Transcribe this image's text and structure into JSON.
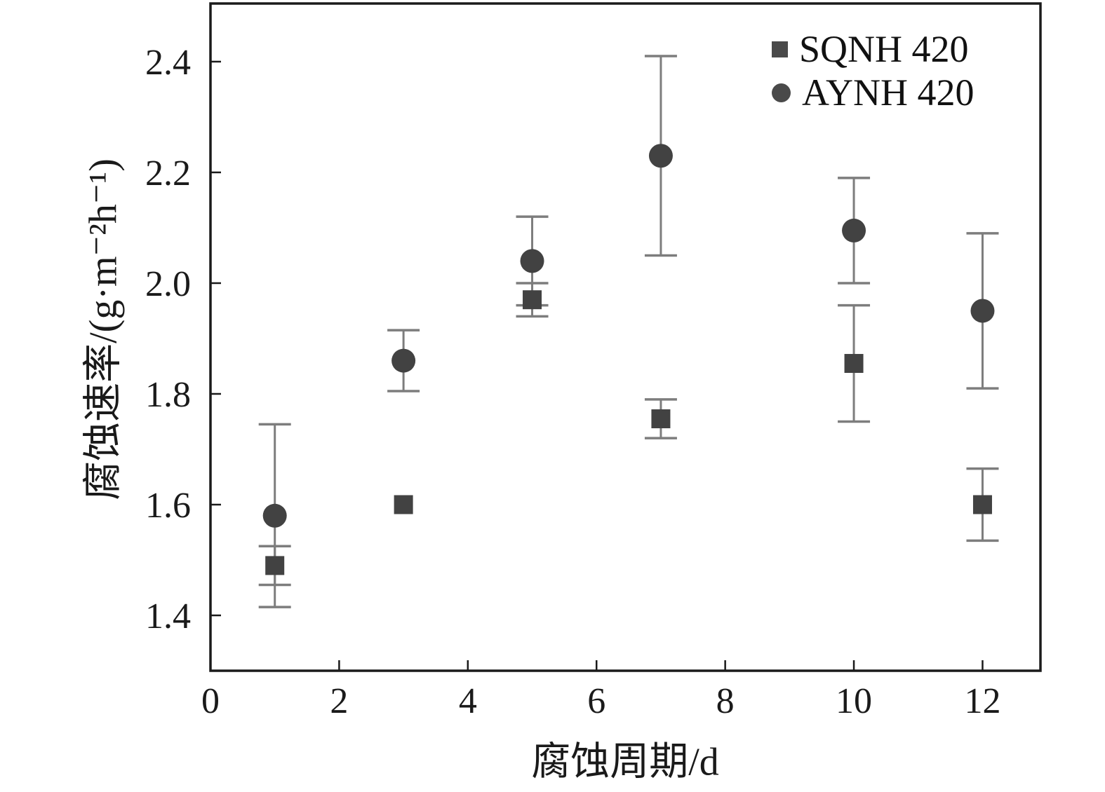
{
  "chart_data": {
    "type": "scatter",
    "title": "",
    "xlabel": "腐蚀周期/d",
    "ylabel": "腐蚀速率/(g·m⁻²h⁻¹)",
    "xlim": [
      0,
      12.9
    ],
    "ylim": [
      1.3,
      2.505
    ],
    "xticks": [
      0,
      2,
      4,
      6,
      8,
      10,
      12
    ],
    "yticks": [
      1.4,
      1.6,
      1.8,
      2.0,
      2.2,
      2.4
    ],
    "grid": false,
    "legend_position": "top-right",
    "series": [
      {
        "name": "SQNH 420",
        "marker": "square",
        "x": [
          1,
          3,
          5,
          7,
          10,
          12
        ],
        "y": [
          1.49,
          1.6,
          1.97,
          1.755,
          1.855,
          1.6
        ],
        "yerr": [
          0.035,
          0.01,
          0.03,
          0.035,
          0.105,
          0.065
        ]
      },
      {
        "name": "AYNH 420",
        "marker": "circle",
        "x": [
          1,
          3,
          5,
          7,
          10,
          12
        ],
        "y": [
          1.58,
          1.86,
          2.04,
          2.23,
          2.095,
          1.95
        ],
        "yerr": [
          0.165,
          0.055,
          0.08,
          0.18,
          0.095,
          0.14
        ]
      }
    ],
    "colors": {
      "marker": "#424242",
      "error_bar": "#7d7d7d",
      "axis": "#1a1a1a",
      "text": "#1a1a1a",
      "background": "#ffffff"
    }
  }
}
